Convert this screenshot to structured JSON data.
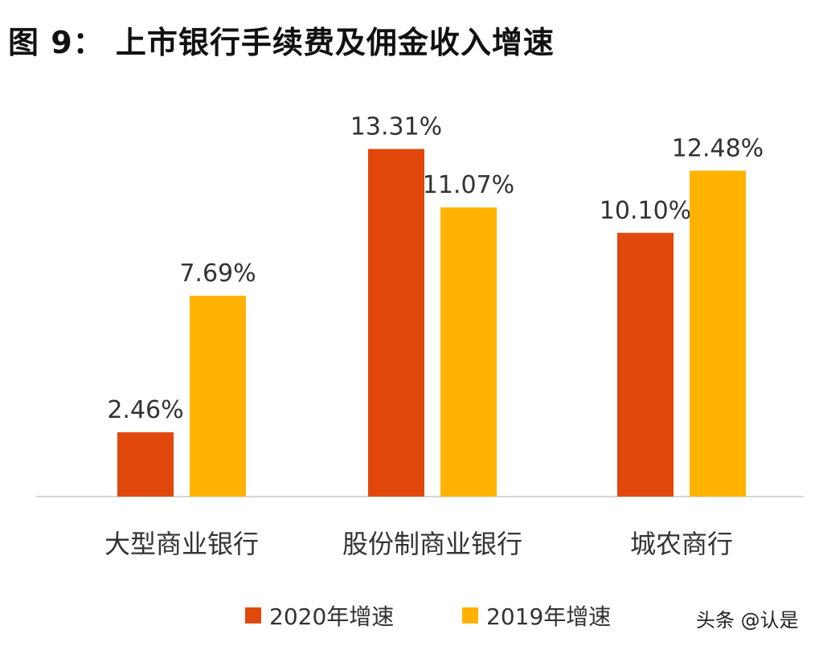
{
  "chart_data": {
    "type": "bar",
    "title": "图 9： 上市银行手续费及佣金收入增速",
    "categories": [
      "大型商业银行",
      "股份制商业银行",
      "城农商行"
    ],
    "series": [
      {
        "name": "2020年增速",
        "values": [
          2.46,
          13.31,
          10.1
        ],
        "labels": [
          "2.46%",
          "13.31%",
          "10.10%"
        ],
        "color": "#E0480C"
      },
      {
        "name": "2019年增速",
        "values": [
          7.69,
          11.07,
          12.48
        ],
        "labels": [
          "7.69%",
          "11.07%",
          "12.48%"
        ],
        "color": "#FFB300"
      }
    ],
    "xlabel": "",
    "ylabel": "",
    "ylim": [
      0,
      14
    ],
    "grid": false,
    "legend": "bottom"
  },
  "watermark": "头条 @认是"
}
